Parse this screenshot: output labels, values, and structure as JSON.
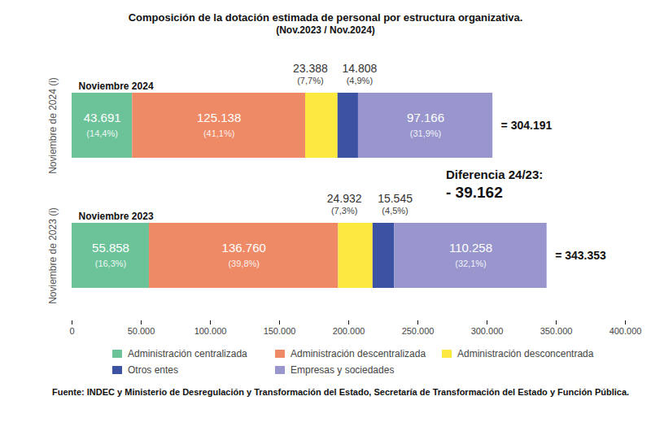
{
  "chart_data": {
    "type": "bar",
    "orientation": "horizontal",
    "stacked": true,
    "data_labels": true,
    "title": "Composición de la dotación estimada de personal por estructura organizativa.",
    "subtitle": "(Nov.2023 / Nov.2024)",
    "categories": [
      "Noviembre de 2024 (i)",
      "Noviembre de 2023 (i)"
    ],
    "bar_titles": [
      "Noviembre 2024",
      "Noviembre 2023"
    ],
    "series": [
      {
        "name": "Administración centralizada",
        "color": "#6cc39a",
        "values": [
          43691,
          55858
        ],
        "value_labels": [
          "43.691",
          "55.858"
        ],
        "share_labels": [
          "(14,4%)",
          "(16,3%)"
        ]
      },
      {
        "name": "Administración descentralizada",
        "color": "#ef8a67",
        "values": [
          125138,
          136760
        ],
        "value_labels": [
          "125.138",
          "136.760"
        ],
        "share_labels": [
          "(41,1%)",
          "(39,8%)"
        ]
      },
      {
        "name": "Administración desconcentrada",
        "color": "#fde83f",
        "values": [
          23388,
          24932
        ],
        "value_labels": [
          "23.388",
          "24.932"
        ],
        "share_labels": [
          "(7,7%)",
          "(7,3%)"
        ]
      },
      {
        "name": "Otros entes",
        "color": "#3c53a4",
        "values": [
          14808,
          15545
        ],
        "value_labels": [
          "14.808",
          "15.545"
        ],
        "share_labels": [
          "(4,9%)",
          "(4,5%)"
        ]
      },
      {
        "name": "Empresas y sociedades",
        "color": "#9896cc",
        "values": [
          97166,
          110258
        ],
        "value_labels": [
          "97.166",
          "110.258"
        ],
        "share_labels": [
          "(31,9%)",
          "(32,1%)"
        ]
      }
    ],
    "xlim": [
      0,
      400000
    ],
    "xticks": [
      0,
      {
        "value": 50000,
        "label": "50.000"
      },
      {
        "value": 100000,
        "label": "100.000"
      },
      {
        "value": 150000,
        "label": "150.000"
      },
      {
        "value": 200000,
        "label": "200.000"
      },
      {
        "value": 250000,
        "label": "250.000"
      },
      {
        "value": 300000,
        "label": "300.000"
      },
      {
        "value": 350000,
        "label": "350.000"
      },
      {
        "value": 400000,
        "label": "400.000"
      }
    ],
    "grid": false,
    "legend": "bottom",
    "totals": [
      {
        "value": 304191,
        "label": "= 304.191"
      },
      {
        "value": 343353,
        "label": "= 343.353"
      }
    ],
    "difference": {
      "title": "Diferencia 24/23:",
      "label": "- 39.162"
    },
    "source": "Fuente: INDEC y Ministerio de Desregulación y Transformación del Estado, Secretaría de Transformación del Estado y Función Pública."
  }
}
